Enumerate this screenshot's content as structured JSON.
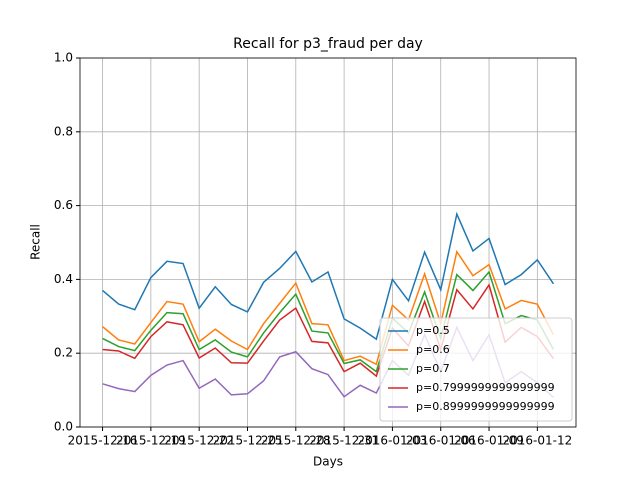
{
  "chart_data": {
    "type": "line",
    "title": "Recall for p3_fraud per day",
    "xlabel": "Days",
    "ylabel": "Recall",
    "x": [
      "2015-12-16",
      "2015-12-17",
      "2015-12-18",
      "2015-12-19",
      "2015-12-20",
      "2015-12-21",
      "2015-12-22",
      "2015-12-23",
      "2015-12-24",
      "2015-12-25",
      "2015-12-26",
      "2015-12-27",
      "2015-12-28",
      "2015-12-29",
      "2015-12-30",
      "2015-12-31",
      "2016-01-01",
      "2016-01-02",
      "2016-01-03",
      "2016-01-04",
      "2016-01-05",
      "2016-01-06",
      "2016-01-07",
      "2016-01-08",
      "2016-01-09",
      "2016-01-10",
      "2016-01-11",
      "2016-01-12",
      "2016-01-13"
    ],
    "series": [
      {
        "name": "p=0.5",
        "color": "#1f77b4",
        "values": [
          0.37,
          0.333,
          0.318,
          0.405,
          0.449,
          0.443,
          0.322,
          0.38,
          0.332,
          0.312,
          0.392,
          0.43,
          0.476,
          0.393,
          0.42,
          0.293,
          0.268,
          0.238,
          0.4,
          0.342,
          0.474,
          0.372,
          0.577,
          0.477,
          0.511,
          0.386,
          0.413,
          0.453,
          0.388
        ]
      },
      {
        "name": "p=0.6",
        "color": "#ff7f0e",
        "values": [
          0.272,
          0.236,
          0.225,
          0.283,
          0.34,
          0.333,
          0.231,
          0.265,
          0.233,
          0.21,
          0.28,
          0.335,
          0.39,
          0.28,
          0.277,
          0.18,
          0.192,
          0.17,
          0.33,
          0.29,
          0.415,
          0.28,
          0.475,
          0.41,
          0.44,
          0.32,
          0.343,
          0.333,
          0.25
        ]
      },
      {
        "name": "p=0.7",
        "color": "#2ca02c",
        "values": [
          0.24,
          0.218,
          0.207,
          0.262,
          0.31,
          0.307,
          0.21,
          0.236,
          0.203,
          0.19,
          0.255,
          0.31,
          0.36,
          0.26,
          0.255,
          0.172,
          0.182,
          0.15,
          0.295,
          0.255,
          0.366,
          0.24,
          0.413,
          0.37,
          0.42,
          0.28,
          0.302,
          0.29,
          0.21
        ]
      },
      {
        "name": "p=0.7999999999999999",
        "color": "#d62728",
        "values": [
          0.21,
          0.206,
          0.186,
          0.245,
          0.285,
          0.277,
          0.187,
          0.214,
          0.174,
          0.173,
          0.233,
          0.29,
          0.322,
          0.232,
          0.228,
          0.15,
          0.173,
          0.138,
          0.268,
          0.22,
          0.34,
          0.21,
          0.372,
          0.32,
          0.385,
          0.23,
          0.27,
          0.245,
          0.185
        ]
      },
      {
        "name": "p=0.8999999999999999",
        "color": "#9467bd",
        "values": [
          0.117,
          0.104,
          0.096,
          0.14,
          0.168,
          0.18,
          0.105,
          0.13,
          0.087,
          0.09,
          0.125,
          0.19,
          0.204,
          0.158,
          0.142,
          0.082,
          0.113,
          0.092,
          0.18,
          0.14,
          0.25,
          0.15,
          0.27,
          0.18,
          0.25,
          0.12,
          0.15,
          0.12,
          0.08
        ]
      }
    ],
    "xticks": [
      "2015-12-16",
      "2015-12-19",
      "2015-12-22",
      "2015-12-25",
      "2015-12-28",
      "2015-12-31",
      "2016-01-03",
      "2016-01-06",
      "2016-01-09",
      "2016-01-12"
    ],
    "ylim": [
      0,
      1
    ],
    "yticks": [
      {
        "value": 0,
        "label": "0.0"
      },
      {
        "value": 0.2,
        "label": "0.2"
      },
      {
        "value": 0.4,
        "label": "0.4"
      },
      {
        "value": 0.6,
        "label": "0.6"
      },
      {
        "value": 0.8,
        "label": "0.8"
      },
      {
        "value": 1,
        "label": "1.0"
      }
    ],
    "grid": true,
    "legend": "lower right"
  }
}
